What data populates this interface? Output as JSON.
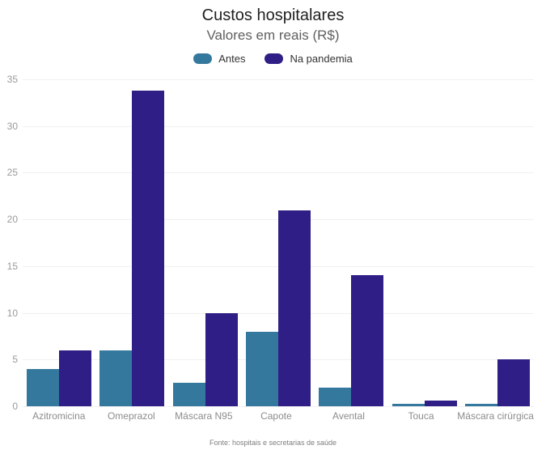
{
  "header": {
    "title": "Custos hospitalares",
    "subtitle": "Valores em reais (R$)"
  },
  "footer": {
    "source": "Fonte: hospitais e secretarias de saúde"
  },
  "colors": {
    "antes": "#35789e",
    "na_pandemia": "#2f1e85",
    "gridline": "#f0f0f0",
    "axis_text": "#8c8c8c"
  },
  "chart_data": {
    "type": "bar",
    "title": "Custos hospitalares",
    "subtitle": "Valores em reais (R$)",
    "categories": [
      "Azitromicina",
      "Omeprazol",
      "Máscara N95",
      "Capote",
      "Avental",
      "Touca",
      "Máscara cirúrgica"
    ],
    "series": [
      {
        "name": "Antes",
        "color": "#35789e",
        "values": [
          4,
          6,
          2.5,
          8,
          2,
          0.3,
          0.3
        ]
      },
      {
        "name": "Na pandemia",
        "color": "#2f1e85",
        "values": [
          6,
          33.8,
          10,
          21,
          14,
          0.6,
          5
        ]
      }
    ],
    "xlabel": "",
    "ylabel": "",
    "ylim": [
      0,
      35
    ],
    "yticks": [
      0,
      5,
      10,
      15,
      20,
      25,
      30,
      35
    ],
    "grid": true,
    "legend_position": "top",
    "source": "Fonte: hospitais e secretarias de saúde"
  }
}
